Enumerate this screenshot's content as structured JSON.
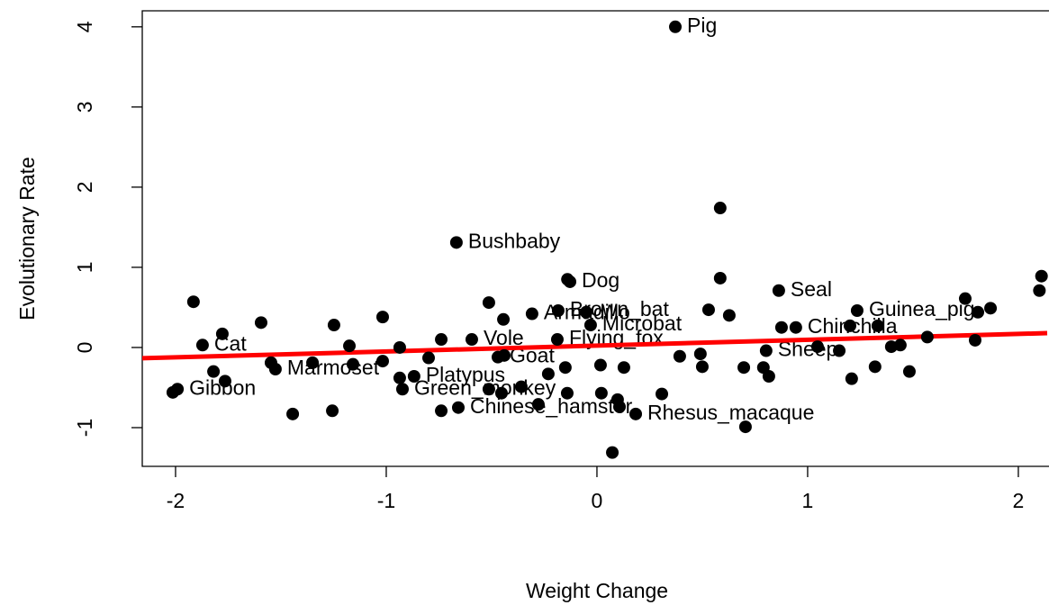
{
  "chart_data": {
    "type": "scatter",
    "x_label": "Weight Change",
    "y_label": "Evolutionary Rate",
    "xlim": [
      -2.158,
      2.137
    ],
    "ylim": [
      -1.483,
      4.2
    ],
    "xticks": [
      -2,
      -1,
      0,
      1,
      2
    ],
    "yticks": [
      -1,
      0,
      1,
      2,
      3,
      4
    ],
    "color": "#000000",
    "fit": {
      "intercept": 0.023,
      "slope": 0.073,
      "color": "#ff0000"
    },
    "x": [
      0.372,
      -0.667,
      0.585,
      -0.128,
      -0.14,
      0.585,
      0.863,
      1.235,
      1.748,
      2.11,
      2.1,
      -1.915,
      -1.594,
      -1.778,
      -1.872,
      -1.248,
      -1.017,
      -1.175,
      -0.936,
      -0.739,
      -0.513,
      -0.444,
      -0.308,
      -0.184,
      -0.051,
      -0.03,
      0.53,
      0.628,
      0.876,
      0.944,
      1.201,
      1.333,
      -0.594,
      -0.188,
      -2.013,
      -1.991,
      -1.82,
      -1.765,
      -1.547,
      -1.526,
      -1.444,
      -1.256,
      -1.35,
      -1.158,
      -1.017,
      -0.936,
      -0.923,
      -0.868,
      -0.799,
      -0.739,
      -0.658,
      -0.513,
      -0.453,
      -0.47,
      -0.44,
      -0.359,
      -0.278,
      -0.231,
      -0.141,
      -0.15,
      0.021,
      0.073,
      0.098,
      0.107,
      0.184,
      0.308,
      0.705,
      0.017,
      0.128,
      0.393,
      0.491,
      0.5,
      0.697,
      0.79,
      0.803,
      0.816,
      1.047,
      1.15,
      1.209,
      1.32,
      1.397,
      1.44,
      1.483,
      1.568,
      1.795,
      1.868,
      1.808
    ],
    "values": [
      4.0,
      1.31,
      1.74,
      0.82,
      0.85,
      0.865,
      0.71,
      0.46,
      0.61,
      0.89,
      0.71,
      0.57,
      0.31,
      0.17,
      0.03,
      0.28,
      0.38,
      0.02,
      0.0,
      0.1,
      0.56,
      0.35,
      0.42,
      0.46,
      0.44,
      0.28,
      0.47,
      0.4,
      0.25,
      0.25,
      0.27,
      0.27,
      0.1,
      0.1,
      -0.56,
      -0.52,
      -0.3,
      -0.42,
      -0.19,
      -0.27,
      -0.83,
      -0.79,
      -0.19,
      -0.21,
      -0.17,
      -0.38,
      -0.52,
      -0.36,
      -0.13,
      -0.79,
      -0.75,
      -0.52,
      -0.57,
      -0.12,
      -0.1,
      -0.49,
      -0.71,
      -0.33,
      -0.57,
      -0.25,
      -0.57,
      -1.31,
      -0.65,
      -0.74,
      -0.83,
      -0.58,
      -0.99,
      -0.22,
      -0.25,
      -0.11,
      -0.08,
      -0.24,
      -0.25,
      -0.25,
      -0.04,
      -0.36,
      0.01,
      -0.04,
      -0.39,
      -0.24,
      0.01,
      0.03,
      -0.3,
      0.13,
      0.09,
      0.49,
      0.44
    ],
    "labels": [
      "Pig",
      "Bushbaby",
      null,
      "Dog",
      null,
      null,
      "Seal",
      "Guinea_pig",
      null,
      null,
      null,
      null,
      null,
      null,
      "Cat",
      null,
      null,
      null,
      null,
      null,
      null,
      null,
      "Armadillo",
      "Brown_bat",
      null,
      "Microbat",
      null,
      null,
      null,
      "Chinchilla",
      null,
      null,
      "Vole",
      "Flying_fox",
      null,
      "Gibbon",
      null,
      null,
      null,
      "Marmoset",
      null,
      null,
      null,
      null,
      null,
      null,
      "Green_monkey",
      "Platypus",
      null,
      null,
      "Chinese_hamster",
      null,
      null,
      "Goat",
      null,
      null,
      null,
      null,
      null,
      null,
      null,
      null,
      null,
      null,
      "Rhesus_macaque",
      null,
      null,
      null,
      null,
      null,
      null,
      null,
      null,
      null,
      "Sheep",
      null,
      null,
      null,
      null,
      null,
      null,
      null,
      null,
      null,
      null,
      null,
      null
    ]
  }
}
